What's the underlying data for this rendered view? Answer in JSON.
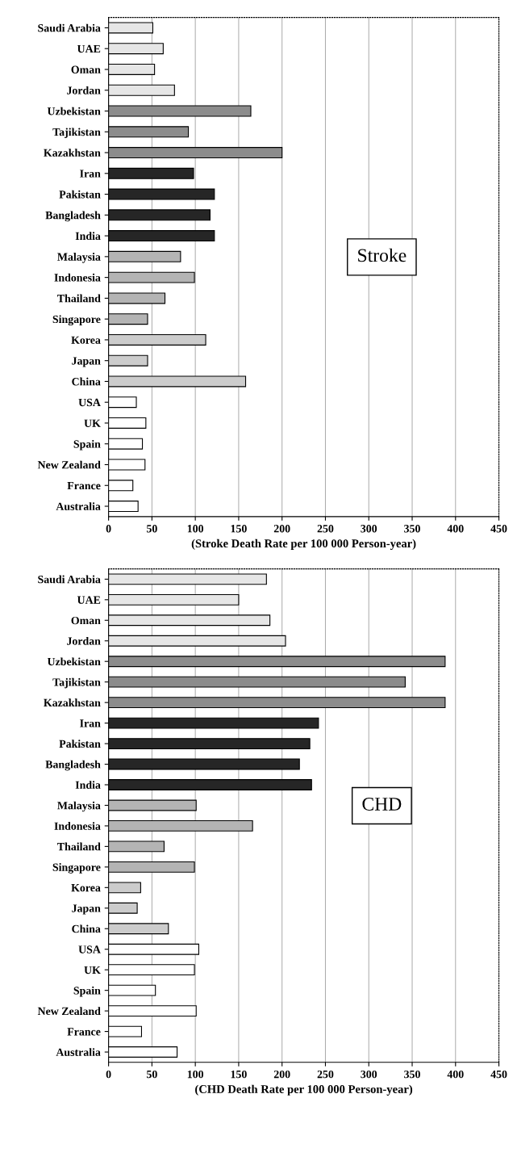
{
  "chart_data": [
    {
      "type": "bar",
      "orientation": "horizontal",
      "xlabel": "(Stroke Death Rate per 100 000 Person-year)",
      "annotations": [
        "Stroke"
      ],
      "categories": [
        "Saudi Arabia",
        "UAE",
        "Oman",
        "Jordan",
        "Uzbekistan",
        "Tajikistan",
        "Kazakhstan",
        "Iran",
        "Pakistan",
        "Bangladesh",
        "India",
        "Malaysia",
        "Indonesia",
        "Thailand",
        "Singapore",
        "Korea",
        "Japan",
        "China",
        "USA",
        "UK",
        "Spain",
        "New Zealand",
        "France",
        "Australia"
      ],
      "values": [
        51,
        63,
        53,
        76,
        164,
        92,
        200,
        98,
        122,
        117,
        122,
        83,
        99,
        65,
        45,
        112,
        45,
        158,
        32,
        43,
        39,
        42,
        28,
        34
      ],
      "colors": [
        "#e6e6e6",
        "#e6e6e6",
        "#e6e6e6",
        "#e6e6e6",
        "#8c8c8c",
        "#8c8c8c",
        "#8c8c8c",
        "#262626",
        "#262626",
        "#262626",
        "#262626",
        "#b4b4b4",
        "#b4b4b4",
        "#b4b4b4",
        "#b4b4b4",
        "#cccccc",
        "#cccccc",
        "#cccccc",
        "#ffffff",
        "#ffffff",
        "#ffffff",
        "#ffffff",
        "#ffffff",
        "#ffffff"
      ],
      "xlim": [
        0,
        450
      ],
      "xticks": [
        0,
        50,
        100,
        150,
        200,
        250,
        300,
        350,
        400,
        450
      ],
      "grid": "x"
    },
    {
      "type": "bar",
      "orientation": "horizontal",
      "xlabel": "(CHD Death Rate per 100 000 Person-year)",
      "annotations": [
        "CHD"
      ],
      "categories": [
        "Saudi Arabia",
        "UAE",
        "Oman",
        "Jordan",
        "Uzbekistan",
        "Tajikistan",
        "Kazakhstan",
        "Iran",
        "Pakistan",
        "Bangladesh",
        "India",
        "Malaysia",
        "Indonesia",
        "Thailand",
        "Singapore",
        "Korea",
        "Japan",
        "China",
        "USA",
        "UK",
        "Spain",
        "New Zealand",
        "France",
        "Australia"
      ],
      "values": [
        182,
        150,
        186,
        204,
        388,
        342,
        388,
        242,
        232,
        220,
        234,
        101,
        166,
        64,
        99,
        37,
        33,
        69,
        104,
        99,
        54,
        101,
        38,
        79
      ],
      "colors": [
        "#e6e6e6",
        "#e6e6e6",
        "#e6e6e6",
        "#e6e6e6",
        "#8c8c8c",
        "#8c8c8c",
        "#8c8c8c",
        "#262626",
        "#262626",
        "#262626",
        "#262626",
        "#b4b4b4",
        "#b4b4b4",
        "#b4b4b4",
        "#b4b4b4",
        "#cccccc",
        "#cccccc",
        "#cccccc",
        "#ffffff",
        "#ffffff",
        "#ffffff",
        "#ffffff",
        "#ffffff",
        "#ffffff"
      ],
      "xlim": [
        0,
        450
      ],
      "xticks": [
        0,
        50,
        100,
        150,
        200,
        250,
        300,
        350,
        400,
        450
      ],
      "grid": "x"
    }
  ]
}
